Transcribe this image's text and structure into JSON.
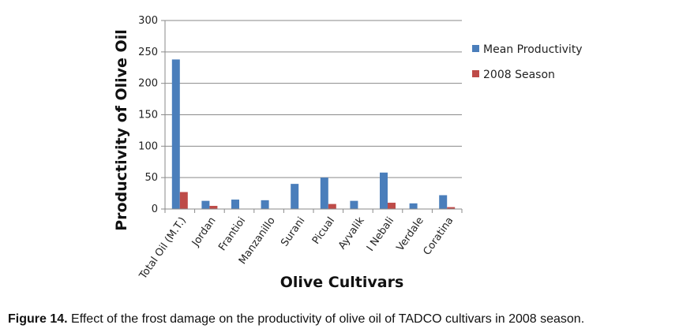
{
  "chart_data": {
    "type": "bar",
    "title": "",
    "xlabel": "Olive Cultivars",
    "ylabel": "Productivity of Olive Oil",
    "ylim": [
      0,
      300
    ],
    "yticks": [
      0,
      50,
      100,
      150,
      200,
      250,
      300
    ],
    "grid": true,
    "legend_position": "right",
    "categories": [
      "Total Oil (M.T.)",
      "Jordan",
      "Frantioi",
      "Manzanillo",
      "Surani",
      "Picual",
      "Ayvalik",
      "I Nebali",
      "Verdale",
      "Coratina"
    ],
    "series": [
      {
        "name": "Mean Productivity",
        "color": "#4a7ebb",
        "values": [
          238,
          13,
          15,
          14,
          40,
          50,
          13,
          58,
          9,
          22
        ]
      },
      {
        "name": "2008 Season",
        "color": "#be4b48",
        "values": [
          27,
          5,
          0,
          0,
          0,
          8,
          0,
          10,
          0,
          3
        ]
      }
    ]
  },
  "caption": {
    "label": "Figure 14.",
    "text": " Effect of the frost damage on the productivity of olive oil of TADCO cultivars in 2008 season."
  }
}
